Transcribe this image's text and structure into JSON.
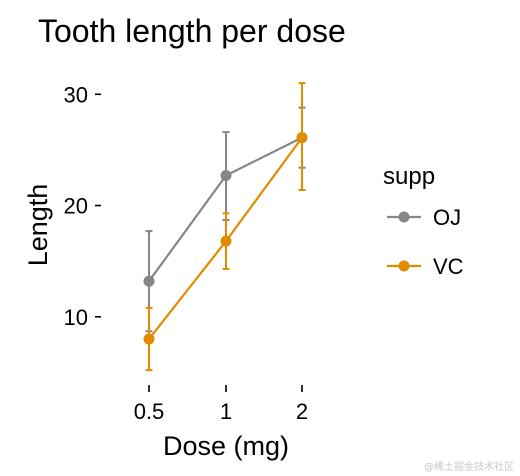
{
  "chart_data": {
    "type": "line",
    "title": "Tooth length per dose",
    "xlabel": "Dose (mg)",
    "ylabel": "Length",
    "categories": [
      "0.5",
      "1",
      "2"
    ],
    "ylim": [
      4.5,
      32
    ],
    "yticks": [
      10,
      20,
      30
    ],
    "grid": false,
    "legend": {
      "title": "supp",
      "position": "right"
    },
    "series": [
      {
        "name": "OJ",
        "color": "#868686",
        "values": [
          13.2,
          22.7,
          26.1
        ],
        "error_low": [
          8.7,
          18.7,
          23.4
        ],
        "error_high": [
          17.7,
          26.6,
          28.8
        ]
      },
      {
        "name": "VC",
        "color": "#E08B00",
        "values": [
          8.0,
          16.8,
          26.1
        ],
        "error_low": [
          5.2,
          14.3,
          21.4
        ],
        "error_high": [
          10.8,
          19.3,
          31.0
        ]
      }
    ]
  },
  "watermark": "@稀土掘金技术社区"
}
